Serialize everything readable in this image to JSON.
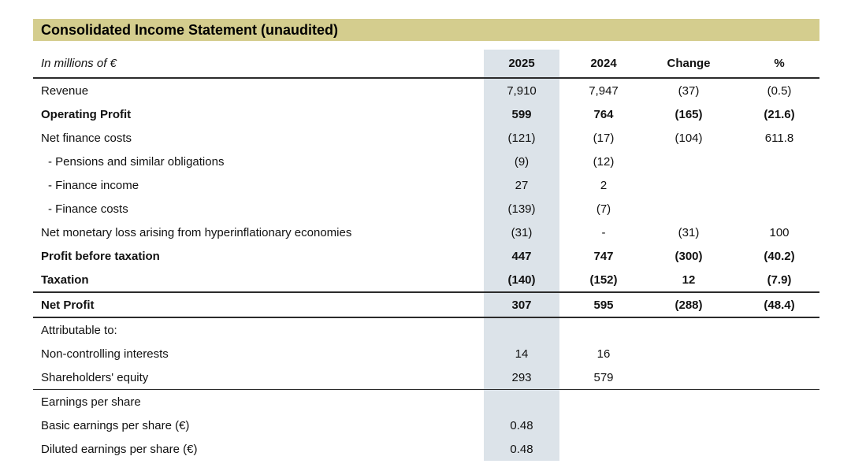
{
  "title": "Consolidated Income Statement (unaudited)",
  "table": {
    "unit_label": "In millions of €",
    "columns": {
      "y2025": "2025",
      "y2024": "2024",
      "change": "Change",
      "percent": "%"
    },
    "rows": [
      {
        "label": "Revenue",
        "v2025": "7,910",
        "v2024": "7,947",
        "change": "(37)",
        "pct": "(0.5)"
      },
      {
        "label": "Operating Profit",
        "v2025": "599",
        "v2024": "764",
        "change": "(165)",
        "pct": "(21.6)"
      },
      {
        "label": "Net finance costs",
        "v2025": "(121)",
        "v2024": "(17)",
        "change": "(104)",
        "pct": "611.8"
      },
      {
        "label": "- Pensions and similar obligations",
        "v2025": "(9)",
        "v2024": "(12)",
        "change": "",
        "pct": ""
      },
      {
        "label": "- Finance income",
        "v2025": "27",
        "v2024": "2",
        "change": "",
        "pct": ""
      },
      {
        "label": "- Finance costs",
        "v2025": "(139)",
        "v2024": "(7)",
        "change": "",
        "pct": ""
      },
      {
        "label": "Net monetary loss arising from hyperinflationary economies",
        "v2025": "(31)",
        "v2024": "-",
        "change": "(31)",
        "pct": "100"
      },
      {
        "label": "Profit before taxation",
        "v2025": "447",
        "v2024": "747",
        "change": "(300)",
        "pct": "(40.2)"
      },
      {
        "label": "Taxation",
        "v2025": "(140)",
        "v2024": "(152)",
        "change": "12",
        "pct": "(7.9)"
      },
      {
        "label": "Net Profit",
        "v2025": "307",
        "v2024": "595",
        "change": "(288)",
        "pct": "(48.4)"
      },
      {
        "label": "Attributable to:",
        "v2025": "",
        "v2024": "",
        "change": "",
        "pct": ""
      },
      {
        "label": "Non-controlling interests",
        "v2025": "14",
        "v2024": "16",
        "change": "",
        "pct": ""
      },
      {
        "label": "Shareholders' equity",
        "v2025": "293",
        "v2024": "579",
        "change": "",
        "pct": ""
      },
      {
        "label": "Earnings per share",
        "v2025": "",
        "v2024": "",
        "change": "",
        "pct": ""
      },
      {
        "label": "Basic earnings per share (€)",
        "v2025": "0.48",
        "v2024": "",
        "change": "",
        "pct": ""
      },
      {
        "label": "Diluted earnings per share (€)",
        "v2025": "0.48",
        "v2024": "",
        "change": "",
        "pct": ""
      }
    ]
  },
  "colors": {
    "title_band": "#d4cd8e",
    "highlight": "#dce3e9",
    "line": "#2b2b2b",
    "text": "#111111"
  }
}
